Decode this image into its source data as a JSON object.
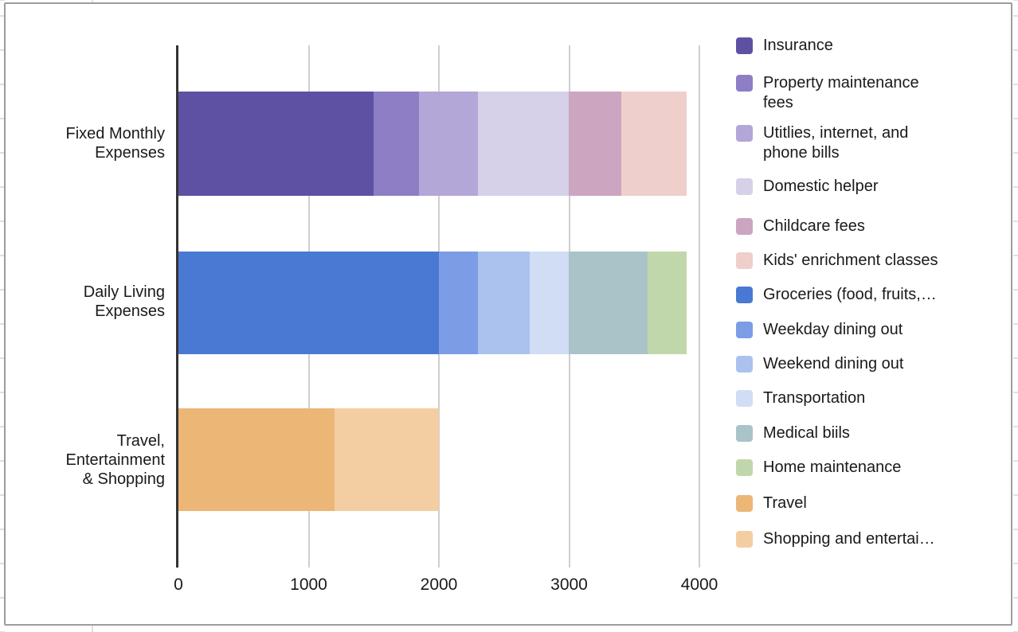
{
  "chart_data": {
    "type": "bar",
    "orientation": "horizontal",
    "stacked": true,
    "title": "",
    "xlabel": "",
    "ylabel": "",
    "xlim": [
      0,
      4000
    ],
    "x_ticks": [
      0,
      1000,
      2000,
      3000,
      4000
    ],
    "grid": true,
    "legend_position": "right",
    "categories": [
      {
        "label": "Fixed Monthly\nExpenses",
        "total": 3900
      },
      {
        "label": "Daily Living\nExpenses",
        "total": 3900
      },
      {
        "label": "Travel,\nEntertainment\n& Shopping",
        "total": 2000
      }
    ],
    "series": [
      {
        "label": "Insurance",
        "color": "#5E51A3",
        "values": [
          1500,
          0,
          0
        ]
      },
      {
        "label": "Property maintenance\nfees",
        "color": "#8D7EC5",
        "values": [
          350,
          0,
          0
        ]
      },
      {
        "label": "Utitlies, internet, and\nphone bills",
        "color": "#B2A7D7",
        "values": [
          450,
          0,
          0
        ]
      },
      {
        "label": "Domestic helper",
        "color": "#D6D1E9",
        "values": [
          700,
          0,
          0
        ]
      },
      {
        "label": "Childcare fees",
        "color": "#CCA5C0",
        "values": [
          400,
          0,
          0
        ]
      },
      {
        "label": "Kids' enrichment classes",
        "color": "#EFCFCB",
        "values": [
          500,
          0,
          0
        ]
      },
      {
        "label": "Groceries (food, fruits,…",
        "color": "#4A79D3",
        "values": [
          0,
          2000,
          0
        ]
      },
      {
        "label": "Weekday dining out",
        "color": "#7C9DE5",
        "values": [
          0,
          300,
          0
        ]
      },
      {
        "label": "Weekend dining out",
        "color": "#ABC2EF",
        "values": [
          0,
          400,
          0
        ]
      },
      {
        "label": "Transportation",
        "color": "#D0DDF5",
        "values": [
          0,
          300,
          0
        ]
      },
      {
        "label": "Medical biils",
        "color": "#AAC3C9",
        "values": [
          0,
          600,
          0
        ]
      },
      {
        "label": "Home maintenance",
        "color": "#C0D7AB",
        "values": [
          0,
          300,
          0
        ]
      },
      {
        "label": "Travel",
        "color": "#ECB677",
        "values": [
          0,
          0,
          1200
        ]
      },
      {
        "label": "Shopping and entertai…",
        "color": "#F3CEA2",
        "values": [
          0,
          0,
          800
        ]
      }
    ],
    "colors": {
      "gridline": "#CFCFCF",
      "axis_line": "#333333",
      "text": "#1A1A1A",
      "chart_border": "#9D9D9D",
      "background": "#FFFFFF"
    }
  }
}
